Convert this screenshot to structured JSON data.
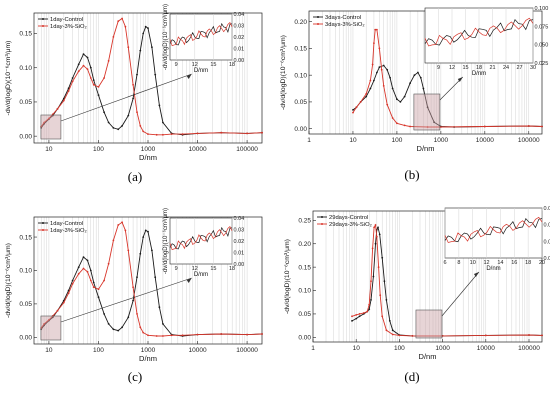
{
  "figure": {
    "panels": [
      "(a)",
      "(b)",
      "(c)",
      "(d)"
    ]
  },
  "chart_data": [
    {
      "panel": "(a)",
      "type": "line",
      "xlabel": "D/nm",
      "ylabel": "-dv/d(logD)(10⁻⁶cm³/μm)",
      "xscale": "log",
      "xlim": [
        5,
        200000
      ],
      "ylim": [
        -0.01,
        0.18
      ],
      "xticks": [
        "10",
        "100",
        "1000",
        "10000",
        "100000"
      ],
      "yticks": [
        "0.00",
        "0.05",
        "0.10",
        "0.15"
      ],
      "legend": "top-left",
      "series": [
        {
          "name": "1day-Control",
          "color": "#1a1a1a",
          "x": [
            7,
            8,
            10,
            12,
            15,
            20,
            25,
            30,
            40,
            50,
            60,
            70,
            80,
            100,
            130,
            160,
            200,
            250,
            300,
            400,
            500,
            600,
            700,
            800,
            900,
            1000,
            1200,
            1400,
            1700,
            2000,
            3000,
            5000,
            10000,
            30000,
            100000,
            200000
          ],
          "y": [
            0.012,
            0.018,
            0.025,
            0.03,
            0.04,
            0.055,
            0.07,
            0.085,
            0.105,
            0.12,
            0.115,
            0.1,
            0.082,
            0.06,
            0.035,
            0.02,
            0.012,
            0.01,
            0.015,
            0.03,
            0.055,
            0.09,
            0.125,
            0.15,
            0.16,
            0.158,
            0.13,
            0.09,
            0.045,
            0.02,
            0.004,
            0.002,
            0.004,
            0.005,
            0.004,
            0.005
          ]
        },
        {
          "name": "1day-3%-SiO₂",
          "color": "#d8352a",
          "x": [
            7,
            8,
            10,
            12,
            15,
            20,
            25,
            30,
            40,
            50,
            60,
            70,
            80,
            100,
            130,
            160,
            200,
            250,
            300,
            350,
            400,
            500,
            600,
            700,
            800,
            1000,
            1500,
            2000,
            3000,
            5000,
            10000,
            30000,
            100000,
            200000
          ],
          "y": [
            0.014,
            0.02,
            0.026,
            0.032,
            0.04,
            0.052,
            0.066,
            0.08,
            0.095,
            0.103,
            0.098,
            0.085,
            0.075,
            0.072,
            0.085,
            0.11,
            0.145,
            0.168,
            0.172,
            0.16,
            0.13,
            0.075,
            0.035,
            0.015,
            0.007,
            0.003,
            0.002,
            0.002,
            0.003,
            0.003,
            0.004,
            0.005,
            0.004,
            0.005
          ]
        }
      ],
      "inset": {
        "xlabel": "D/nm",
        "ylabel": "-dv/d(logD)(10⁻⁶cm³/μm)",
        "xlim": [
          8,
          18
        ],
        "ylim": [
          0,
          0.04
        ],
        "xticks": [
          "9",
          "12",
          "15",
          "18"
        ],
        "yticks": [
          "0.00",
          "0.01",
          "0.02",
          "0.03",
          "0.04"
        ]
      }
    },
    {
      "panel": "(b)",
      "type": "line",
      "xlabel": "D/nm",
      "ylabel": "-dv/d(logD)(10⁻⁶cm³/μm)",
      "xscale": "log",
      "xlim": [
        1,
        200000
      ],
      "ylim": [
        -0.01,
        0.22
      ],
      "xticks": [
        "1",
        "10",
        "100",
        "1000",
        "10000",
        "100000"
      ],
      "yticks": [
        "0.00",
        "0.05",
        "0.10",
        "0.15",
        "0.20"
      ],
      "legend": "top-left",
      "series": [
        {
          "name": "3days-Control",
          "color": "#1a1a1a",
          "x": [
            10,
            12,
            15,
            20,
            25,
            30,
            35,
            40,
            50,
            60,
            70,
            80,
            100,
            120,
            150,
            200,
            250,
            300,
            350,
            400,
            500,
            700,
            1000,
            2000,
            10000,
            100000,
            200000
          ],
          "y": [
            0.035,
            0.04,
            0.05,
            0.06,
            0.075,
            0.09,
            0.105,
            0.115,
            0.118,
            0.11,
            0.095,
            0.075,
            0.055,
            0.05,
            0.06,
            0.085,
            0.1,
            0.105,
            0.095,
            0.075,
            0.04,
            0.012,
            0.004,
            0.003,
            0.004,
            0.005,
            0.004
          ]
        },
        {
          "name": "3days-3%-SiO₂",
          "color": "#d8352a",
          "x": [
            10,
            12,
            15,
            20,
            25,
            28,
            30,
            32,
            35,
            40,
            45,
            50,
            60,
            80,
            100,
            150,
            200,
            500,
            1000,
            10000,
            100000,
            200000
          ],
          "y": [
            0.03,
            0.04,
            0.05,
            0.065,
            0.09,
            0.12,
            0.16,
            0.185,
            0.185,
            0.15,
            0.11,
            0.08,
            0.045,
            0.02,
            0.01,
            0.006,
            0.004,
            0.003,
            0.003,
            0.004,
            0.005,
            0.004
          ]
        }
      ],
      "inset": {
        "xlabel": "D/nm",
        "ylabel": "",
        "xlim": [
          6,
          30
        ],
        "ylim": [
          0.025,
          0.1
        ],
        "xticks": [
          "9",
          "12",
          "15",
          "18",
          "21",
          "24",
          "27",
          "30"
        ],
        "yticks": [
          "0.025",
          "0.050",
          "0.075",
          "0.100"
        ]
      }
    },
    {
      "panel": "(c)",
      "type": "line",
      "xlabel": "D/nm",
      "ylabel": "-dv/d(logD)(10⁻⁶cm³/μm)",
      "xscale": "log",
      "xlim": [
        5,
        200000
      ],
      "ylim": [
        -0.01,
        0.18
      ],
      "xticks": [
        "10",
        "100",
        "1000",
        "10000",
        "100000"
      ],
      "yticks": [
        "0.00",
        "0.05",
        "0.10",
        "0.15"
      ],
      "legend": "top-left",
      "series": [
        {
          "name": "1day-Control",
          "color": "#1a1a1a",
          "x": [
            7,
            8,
            10,
            12,
            15,
            20,
            25,
            30,
            40,
            50,
            60,
            70,
            80,
            100,
            130,
            160,
            200,
            250,
            300,
            400,
            500,
            600,
            700,
            800,
            900,
            1000,
            1200,
            1400,
            1700,
            2000,
            3000,
            5000,
            10000,
            30000,
            100000,
            200000
          ],
          "y": [
            0.012,
            0.018,
            0.025,
            0.03,
            0.04,
            0.055,
            0.07,
            0.085,
            0.105,
            0.12,
            0.115,
            0.1,
            0.082,
            0.06,
            0.035,
            0.02,
            0.012,
            0.01,
            0.015,
            0.03,
            0.055,
            0.09,
            0.125,
            0.15,
            0.16,
            0.158,
            0.13,
            0.09,
            0.045,
            0.02,
            0.004,
            0.002,
            0.004,
            0.005,
            0.004,
            0.005
          ]
        },
        {
          "name": "1day-3%-SiO₂",
          "color": "#d8352a",
          "x": [
            7,
            8,
            10,
            12,
            15,
            20,
            25,
            30,
            40,
            50,
            60,
            70,
            80,
            100,
            130,
            160,
            200,
            250,
            300,
            350,
            400,
            500,
            600,
            700,
            800,
            1000,
            1500,
            2000,
            3000,
            5000,
            10000,
            30000,
            100000,
            200000
          ],
          "y": [
            0.014,
            0.02,
            0.026,
            0.032,
            0.04,
            0.052,
            0.066,
            0.08,
            0.095,
            0.103,
            0.098,
            0.085,
            0.075,
            0.072,
            0.085,
            0.11,
            0.145,
            0.168,
            0.172,
            0.16,
            0.13,
            0.075,
            0.035,
            0.015,
            0.007,
            0.003,
            0.002,
            0.002,
            0.003,
            0.003,
            0.004,
            0.005,
            0.004,
            0.005
          ]
        }
      ],
      "inset": {
        "xlabel": "D/nm",
        "ylabel": "-dv/d(logD)(10⁻⁶cm³/μm)",
        "xlim": [
          8,
          18
        ],
        "ylim": [
          0,
          0.04
        ],
        "xticks": [
          "9",
          "12",
          "15",
          "18"
        ],
        "yticks": [
          "0.00",
          "0.01",
          "0.02",
          "0.03",
          "0.04"
        ]
      }
    },
    {
      "panel": "(d)",
      "type": "line",
      "xlabel": "D/nm",
      "ylabel": "-dv/d(logD)(10⁻⁶cm³/μm)",
      "xscale": "log",
      "xlim": [
        1,
        200000
      ],
      "ylim": [
        -0.01,
        0.27
      ],
      "xticks": [
        "1",
        "10",
        "100",
        "1000",
        "10000",
        "100000"
      ],
      "yticks": [
        "0.00",
        "0.05",
        "0.10",
        "0.15",
        "0.20",
        "0.25"
      ],
      "legend": "top-left",
      "series": [
        {
          "name": "29days-Control",
          "color": "#1a1a1a",
          "x": [
            8,
            10,
            12,
            15,
            18,
            20,
            22,
            25,
            28,
            30,
            32,
            35,
            40,
            45,
            50,
            60,
            70,
            100,
            200,
            1000,
            10000,
            100000,
            200000
          ],
          "y": [
            0.035,
            0.04,
            0.045,
            0.05,
            0.055,
            0.06,
            0.08,
            0.13,
            0.2,
            0.23,
            0.235,
            0.22,
            0.17,
            0.12,
            0.08,
            0.035,
            0.015,
            0.005,
            0.003,
            0.003,
            0.004,
            0.005,
            0.004
          ]
        },
        {
          "name": "29days-3%-SiO₂",
          "color": "#d8352a",
          "x": [
            8,
            10,
            12,
            15,
            18,
            20,
            22,
            24,
            26,
            28,
            30,
            33,
            36,
            40,
            50,
            70,
            100,
            200,
            1000,
            10000,
            100000,
            200000
          ],
          "y": [
            0.045,
            0.048,
            0.05,
            0.052,
            0.055,
            0.07,
            0.12,
            0.19,
            0.235,
            0.24,
            0.215,
            0.15,
            0.09,
            0.045,
            0.015,
            0.006,
            0.004,
            0.003,
            0.003,
            0.004,
            0.005,
            0.004
          ]
        }
      ],
      "inset": {
        "xlabel": "D/nm",
        "ylabel": "",
        "xlim": [
          6,
          20
        ],
        "ylim": [
          0.03,
          0.06
        ],
        "xticks": [
          "6",
          "8",
          "10",
          "12",
          "14",
          "16",
          "18",
          "20"
        ],
        "yticks": [
          "0.03",
          "0.04",
          "0.05",
          "0.06"
        ]
      }
    }
  ]
}
